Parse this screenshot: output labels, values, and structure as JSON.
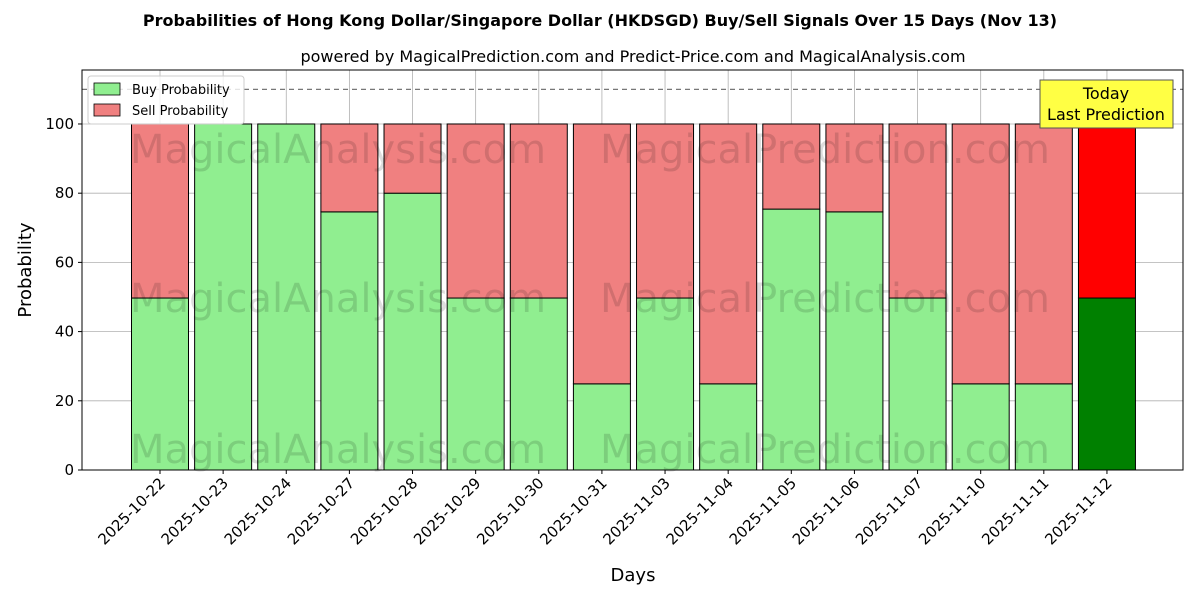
{
  "chart_data": {
    "type": "bar",
    "stacked": true,
    "title": "Probabilities of Hong Kong Dollar/Singapore Dollar (HKDSGD) Buy/Sell Signals Over 15 Days (Nov 13)",
    "subtitle": "powered by MagicalPrediction.com and Predict-Price.com and MagicalAnalysis.com",
    "xlabel": "Days",
    "ylabel": "Probability",
    "ylim": [
      0,
      115.6
    ],
    "yticks": [
      0,
      20,
      40,
      60,
      80,
      100
    ],
    "grid": true,
    "reference_line": 110,
    "categories": [
      "2025-10-22",
      "2025-10-23",
      "2025-10-24",
      "2025-10-27",
      "2025-10-28",
      "2025-10-29",
      "2025-10-30",
      "2025-10-31",
      "2025-11-03",
      "2025-11-04",
      "2025-11-05",
      "2025-11-06",
      "2025-11-07",
      "2025-11-10",
      "2025-11-11",
      "2025-11-12"
    ],
    "series": [
      {
        "name": "Buy Probability",
        "color": "#90ee90",
        "today_color": "#008000",
        "values": [
          49.7,
          100,
          100,
          74.6,
          80,
          49.7,
          49.7,
          24.9,
          49.7,
          24.9,
          75.4,
          74.6,
          49.7,
          24.9,
          24.9,
          49.7
        ]
      },
      {
        "name": "Sell Probability",
        "color": "#f08080",
        "today_color": "#ff0000",
        "values": [
          50.3,
          0,
          0,
          25.4,
          20,
          50.3,
          50.3,
          75.1,
          50.3,
          75.1,
          24.6,
          25.4,
          50.3,
          75.1,
          75.1,
          50.3
        ]
      }
    ],
    "legend": {
      "placement": "top-left",
      "items": [
        "Buy Probability",
        "Sell Probability"
      ]
    },
    "annotation": {
      "line1": "Today",
      "line2": "Last Prediction",
      "color": "#ffff44"
    },
    "watermarks": [
      "MagicalAnalysis.com",
      "MagicalPrediction.com"
    ]
  }
}
